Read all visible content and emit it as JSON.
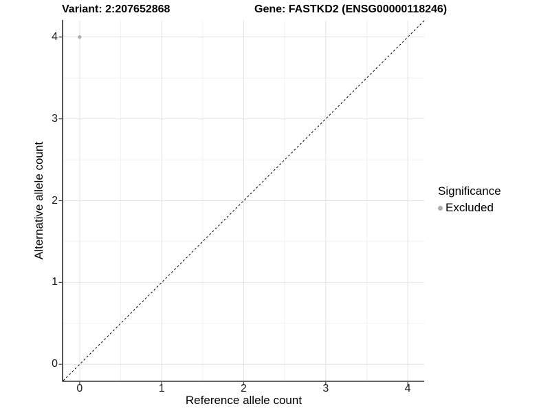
{
  "header": {
    "variant_title": "Variant: 2:207652868",
    "gene_title": "Gene: FASTKD2 (ENSG00000118246)"
  },
  "legend": {
    "title": "Significance",
    "items": [
      {
        "label": "Excluded",
        "marker": "circle",
        "color": "#adadad"
      }
    ]
  },
  "chart_data": {
    "type": "scatter",
    "title_left": "Variant: 2:207652868",
    "title_right": "Gene: FASTKD2 (ENSG00000118246)",
    "xlabel": "Reference allele count",
    "ylabel": "Alternative allele count",
    "xlim": [
      -0.2,
      4.2
    ],
    "ylim": [
      -0.2,
      4.2
    ],
    "x_ticks": [
      0,
      1,
      2,
      3,
      4
    ],
    "y_ticks": [
      0,
      1,
      2,
      3,
      4
    ],
    "x_minor_gridlines": [
      0.5,
      1.5,
      2.5,
      3.5
    ],
    "y_minor_gridlines": [
      0.5,
      1.5,
      2.5,
      3.5
    ],
    "grid": true,
    "legend_position": "right",
    "legend_title": "Significance",
    "series": [
      {
        "name": "Excluded",
        "color": "#adadad",
        "marker_radius": 2.6,
        "points": [
          {
            "x": 0,
            "y": 4
          }
        ]
      }
    ],
    "reference_line": {
      "type": "identity y = x",
      "style": "dashed",
      "color": "#000000",
      "from": [
        -0.2,
        -0.2
      ],
      "to": [
        4.2,
        4.2
      ]
    }
  },
  "colors": {
    "background": "#ffffff",
    "axis_line": "#404040",
    "grid_major": "#e4e4e4",
    "grid_minor": "#f1f1f1",
    "tick_label": "#1a1a1a",
    "point": "#adadad"
  }
}
